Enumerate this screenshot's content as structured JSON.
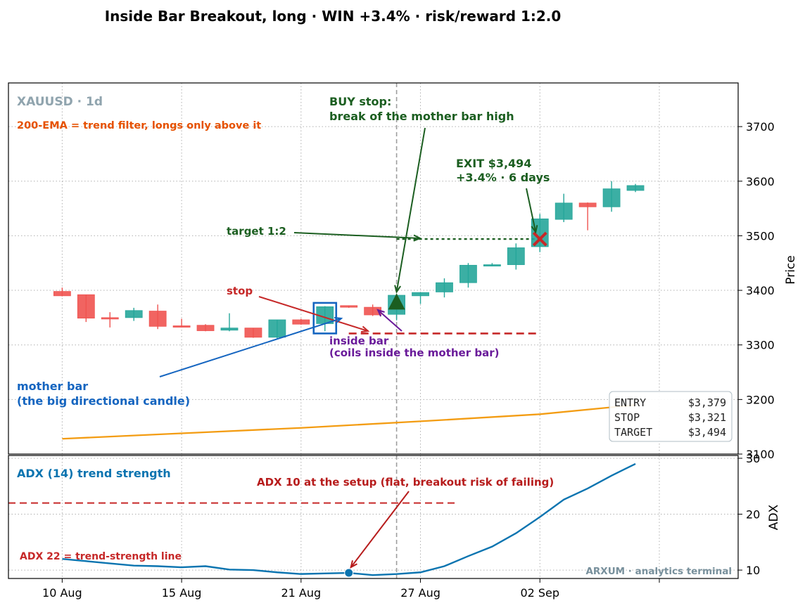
{
  "title": "Inside Bar Breakout, long · WIN +3.4% · risk/reward 1:2.0",
  "colors": {
    "up": "#26a69a",
    "down": "#ef5350",
    "ema": "#f39c12",
    "adx": "#0a74b0",
    "threshold": "#c62828",
    "green": "#1b5e20",
    "blue": "#1565c0",
    "purple": "#6a1b9a",
    "orange": "#e65100",
    "grid": "#b0b0b0",
    "watermark": "#78909c"
  },
  "chart_data": [
    {
      "type": "candlestick",
      "symbol_label": "XAUUSD · 1d",
      "ylabel": "Price",
      "ylim": [
        3100,
        3780
      ],
      "yticks": [
        3100,
        3200,
        3300,
        3400,
        3500,
        3600,
        3700
      ],
      "xticks": [
        {
          "label": "10 Aug",
          "day": 10
        },
        {
          "label": "15 Aug",
          "day": 15
        },
        {
          "label": "21 Aug",
          "day": 20
        },
        {
          "label": "27 Aug",
          "day": 25
        },
        {
          "label": "02 Sep",
          "day": 30
        },
        {
          "label": "",
          "day": 35
        }
      ],
      "xlim": [
        7.75,
        38.3
      ],
      "candles": [
        {
          "day": 10,
          "open": 3398,
          "high": 3405,
          "low": 3389,
          "close": 3390
        },
        {
          "day": 11,
          "open": 3392,
          "high": 3392,
          "low": 3342,
          "close": 3349
        },
        {
          "day": 12,
          "open": 3350,
          "high": 3360,
          "low": 3332,
          "close": 3349
        },
        {
          "day": 13,
          "open": 3350,
          "high": 3368,
          "low": 3344,
          "close": 3363
        },
        {
          "day": 14,
          "open": 3362,
          "high": 3374,
          "low": 3329,
          "close": 3334
        },
        {
          "day": 15,
          "open": 3335,
          "high": 3348,
          "low": 3333,
          "close": 3334
        },
        {
          "day": 16,
          "open": 3336,
          "high": 3338,
          "low": 3325,
          "close": 3326
        },
        {
          "day": 17,
          "open": 3327,
          "high": 3358,
          "low": 3325,
          "close": 3331
        },
        {
          "day": 18,
          "open": 3331,
          "high": 3331,
          "low": 3313,
          "close": 3314
        },
        {
          "day": 19,
          "open": 3314,
          "high": 3346,
          "low": 3312,
          "close": 3346
        },
        {
          "day": 20,
          "open": 3346,
          "high": 3348,
          "low": 3337,
          "close": 3338
        },
        {
          "day": 21,
          "open": 3339,
          "high": 3371,
          "low": 3325,
          "close": 3370
        },
        {
          "day": 22,
          "open": 3372,
          "high": 3372,
          "low": 3368,
          "close": 3369
        },
        {
          "day": 23,
          "open": 3369,
          "high": 3374,
          "low": 3353,
          "close": 3355
        },
        {
          "day": 24,
          "open": 3356,
          "high": 3392,
          "low": 3345,
          "close": 3391
        },
        {
          "day": 25,
          "open": 3390,
          "high": 3396,
          "low": 3375,
          "close": 3396
        },
        {
          "day": 26,
          "open": 3397,
          "high": 3422,
          "low": 3387,
          "close": 3414
        },
        {
          "day": 27,
          "open": 3414,
          "high": 3450,
          "low": 3405,
          "close": 3446
        },
        {
          "day": 28,
          "open": 3447,
          "high": 3450,
          "low": 3444,
          "close": 3447
        },
        {
          "day": 29,
          "open": 3447,
          "high": 3486,
          "low": 3438,
          "close": 3478
        },
        {
          "day": 30,
          "open": 3480,
          "high": 3540,
          "low": 3470,
          "close": 3531
        },
        {
          "day": 31,
          "open": 3530,
          "high": 3577,
          "low": 3525,
          "close": 3560
        },
        {
          "day": 32,
          "open": 3560,
          "high": 3561,
          "low": 3510,
          "close": 3553
        },
        {
          "day": 33,
          "open": 3553,
          "high": 3600,
          "low": 3544,
          "close": 3586
        },
        {
          "day": 34,
          "open": 3583,
          "high": 3595,
          "low": 3580,
          "close": 3592
        }
      ],
      "ema": [
        {
          "day": 10,
          "value": 3128
        },
        {
          "day": 15,
          "value": 3138
        },
        {
          "day": 20,
          "value": 3148
        },
        {
          "day": 25,
          "value": 3160
        },
        {
          "day": 30,
          "value": 3173
        },
        {
          "day": 34,
          "value": 3190
        }
      ],
      "entry_day": 24,
      "exit_day": 30,
      "levels": {
        "stop": 3321,
        "target": 3494,
        "entry": 3379,
        "exit": 3494
      },
      "stop_line_days": [
        22,
        30
      ],
      "target_line_days": [
        24,
        30
      ]
    },
    {
      "type": "line",
      "panel_label": "ADX (14) trend strength",
      "ylabel": "ADX",
      "ylim": [
        8.5,
        30.5
      ],
      "yticks": [
        10,
        20,
        30
      ],
      "threshold": 22,
      "threshold_line_days": [
        7.75,
        26.5
      ],
      "setup_day": 22,
      "series": [
        {
          "day": 10,
          "value": 12.0
        },
        {
          "day": 11,
          "value": 11.6
        },
        {
          "day": 12,
          "value": 11.2
        },
        {
          "day": 13,
          "value": 10.8
        },
        {
          "day": 14,
          "value": 10.7
        },
        {
          "day": 15,
          "value": 10.5
        },
        {
          "day": 16,
          "value": 10.7
        },
        {
          "day": 17,
          "value": 10.1
        },
        {
          "day": 18,
          "value": 10.0
        },
        {
          "day": 19,
          "value": 9.6
        },
        {
          "day": 20,
          "value": 9.3
        },
        {
          "day": 21,
          "value": 9.4
        },
        {
          "day": 22,
          "value": 9.5
        },
        {
          "day": 23,
          "value": 9.1
        },
        {
          "day": 24,
          "value": 9.3
        },
        {
          "day": 25,
          "value": 9.6
        },
        {
          "day": 26,
          "value": 10.7
        },
        {
          "day": 27,
          "value": 12.5
        },
        {
          "day": 28,
          "value": 14.2
        },
        {
          "day": 29,
          "value": 16.6
        },
        {
          "day": 30,
          "value": 19.5
        },
        {
          "day": 31,
          "value": 22.6
        },
        {
          "day": 32,
          "value": 24.6
        },
        {
          "day": 33,
          "value": 26.9
        },
        {
          "day": 34,
          "value": 29.0
        }
      ]
    }
  ],
  "annotations": {
    "ema_note": "200-EMA = trend filter, longs only above it",
    "buy_stop_line1": "BUY stop:",
    "buy_stop_line2": "break of the mother bar high",
    "exit_line1": "EXIT $3,494",
    "exit_line2": "+3.4%  ·  6 days",
    "target_label": "target 1:2",
    "stop_label": "stop",
    "inside_bar_line1": "inside bar",
    "inside_bar_line2": "(coils inside the mother bar)",
    "mother_bar_line1": "mother bar",
    "mother_bar_line2": "(the big directional candle)",
    "adx_setup_note": "ADX 10 at the setup (flat, breakout risk of failing)",
    "adx_threshold_note": "ADX 22 = trend-strength line"
  },
  "trade_box": {
    "entry_label": "ENTRY",
    "entry_value": "$3,379",
    "stop_label": "STOP",
    "stop_value": "$3,321",
    "target_label": "TARGET",
    "target_value": "$3,494"
  },
  "watermark": "ARXUM · analytics terminal"
}
